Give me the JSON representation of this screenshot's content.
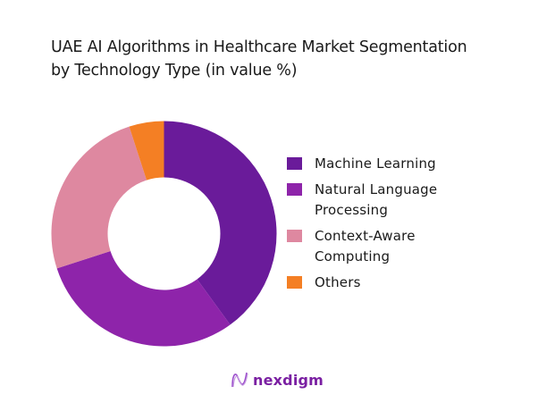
{
  "title": {
    "line1": "UAE AI Algorithms in Healthcare Market Segmentation",
    "line2": "by Technology Type (in value %)"
  },
  "legend": [
    {
      "label_lines": [
        "Machine Learning"
      ],
      "color": "#6a1b9a"
    },
    {
      "label_lines": [
        "Natural Language",
        "Processing"
      ],
      "color": "#8e24aa"
    },
    {
      "label_lines": [
        "Context-Aware",
        "Computing"
      ],
      "color": "#de88a0"
    },
    {
      "label_lines": [
        "Others"
      ],
      "color": "#f47f24"
    }
  ],
  "brand": {
    "name": "nexdigm",
    "logo_icon": "nexdigm-wave-logo",
    "color": "#7a1fa2"
  },
  "chart_data": {
    "type": "pie",
    "subtype": "donut",
    "title": "UAE AI Algorithms in Healthcare Market Segmentation by Technology Type (in value %)",
    "categories": [
      "Machine Learning",
      "Natural Language Processing",
      "Context-Aware Computing",
      "Others"
    ],
    "values": [
      40,
      30,
      25,
      5
    ],
    "colors": [
      "#6a1b9a",
      "#8e24aa",
      "#de88a0",
      "#f47f24"
    ],
    "start_angle": "12 o'clock, clockwise",
    "data_labels": false,
    "legend_position": "right"
  }
}
